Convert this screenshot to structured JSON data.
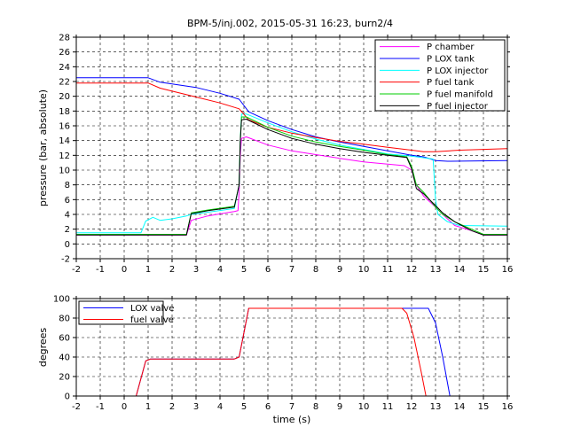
{
  "chart_data": [
    {
      "type": "line",
      "title": "BPM-5/inj.002, 2015-05-31 16:23, burn2/4",
      "xlabel": "",
      "ylabel": "pressure (bar, absolute)",
      "xlim": [
        -2,
        16
      ],
      "ylim": [
        -2,
        28
      ],
      "xticks": [
        -2,
        -1,
        0,
        1,
        2,
        3,
        4,
        5,
        6,
        7,
        8,
        9,
        10,
        11,
        12,
        13,
        14,
        15,
        16
      ],
      "yticks": [
        -2,
        0,
        2,
        4,
        6,
        8,
        10,
        12,
        14,
        16,
        18,
        20,
        22,
        24,
        26,
        28
      ],
      "grid": true,
      "legend_position": "top-right",
      "series": [
        {
          "name": "P chamber",
          "color": "#ff00ff",
          "x": [
            -2,
            2.6,
            2.8,
            3.5,
            4.6,
            4.75,
            4.8,
            4.85,
            4.9,
            5.1,
            6,
            7,
            8,
            9,
            10,
            11,
            11.7,
            12,
            12.2,
            12.5,
            13,
            13.3,
            13.8,
            14.5,
            15,
            16
          ],
          "y": [
            1.2,
            1.2,
            3.2,
            3.8,
            4.4,
            4.5,
            7,
            12,
            14.3,
            14.5,
            13.4,
            12.6,
            12.1,
            11.6,
            11.1,
            10.8,
            10.6,
            10,
            8,
            6.5,
            5,
            4,
            2.5,
            1.8,
            1.2,
            1.2
          ]
        },
        {
          "name": "P LOX tank",
          "color": "#0000ff",
          "x": [
            -2,
            1,
            1.5,
            3,
            4,
            4.8,
            5.2,
            6,
            7,
            8,
            9,
            10,
            11,
            12,
            12.5,
            13,
            13.5,
            16
          ],
          "y": [
            22.5,
            22.5,
            21.9,
            21.2,
            20.4,
            19.6,
            17.9,
            16.7,
            15.5,
            14.5,
            13.8,
            13.2,
            12.6,
            12,
            11.8,
            11.3,
            11.2,
            11.3
          ]
        },
        {
          "name": "P LOX injector",
          "color": "#00ffff",
          "x": [
            -2,
            0.7,
            0.9,
            1.2,
            1.5,
            2,
            2.6,
            2.8,
            3.5,
            4.6,
            4.8,
            4.85,
            4.9,
            5.1,
            6,
            7,
            8,
            9,
            10,
            11,
            12,
            12.9,
            13,
            13.1,
            13.5,
            14,
            16
          ],
          "y": [
            1.5,
            1.5,
            3.1,
            3.6,
            3.2,
            3.4,
            3.8,
            4,
            4.3,
            4.8,
            8,
            14,
            17.6,
            17.6,
            16.4,
            15.2,
            14.2,
            13.4,
            12.8,
            12.2,
            11.9,
            11.5,
            6,
            4,
            3,
            2.5,
            2.4
          ]
        },
        {
          "name": "P fuel tank",
          "color": "#ff0000",
          "x": [
            -2,
            1,
            1.5,
            3,
            4,
            4.8,
            5.2,
            6,
            7,
            8,
            9,
            10,
            11,
            12,
            12.5,
            13,
            14,
            16
          ],
          "y": [
            21.8,
            21.8,
            21.1,
            19.9,
            19.1,
            18.3,
            16.8,
            15.8,
            15,
            14.4,
            13.9,
            13.5,
            13.1,
            12.7,
            12.5,
            12.5,
            12.7,
            12.9
          ]
        },
        {
          "name": "P fuel manifold",
          "color": "#00cc00",
          "x": [
            -2,
            2.6,
            2.8,
            3.5,
            4.6,
            4.8,
            4.85,
            4.9,
            5.1,
            6,
            7,
            8,
            9,
            10,
            11,
            11.8,
            12,
            12.2,
            12.5,
            13,
            13.3,
            13.8,
            14.5,
            15,
            16
          ],
          "y": [
            1.3,
            1.3,
            4.2,
            4.6,
            5.1,
            8,
            14,
            17.2,
            17.2,
            15.8,
            14.6,
            13.8,
            13.2,
            12.7,
            12.1,
            11.8,
            10.5,
            8,
            7,
            5,
            4,
            3,
            2,
            1.3,
            1.3
          ]
        },
        {
          "name": "P fuel injector",
          "color": "#000000",
          "x": [
            -2,
            2.6,
            2.8,
            3.5,
            4.6,
            4.8,
            4.85,
            4.9,
            5.1,
            6,
            7,
            8,
            9,
            10,
            11,
            11.8,
            12,
            12.2,
            12.5,
            13,
            13.3,
            13.8,
            14.5,
            15,
            16
          ],
          "y": [
            1.2,
            1.2,
            4.1,
            4.5,
            5,
            8,
            14,
            16.8,
            16.9,
            15.5,
            14.3,
            13.5,
            12.9,
            12.4,
            12,
            11.7,
            10.2,
            7.5,
            6.8,
            5.2,
            4.2,
            3,
            1.8,
            1.2,
            1.2
          ]
        }
      ]
    },
    {
      "type": "line",
      "title": "",
      "xlabel": "time (s)",
      "ylabel": "degrees",
      "xlim": [
        -2,
        16
      ],
      "ylim": [
        0,
        100
      ],
      "xticks": [
        -2,
        -1,
        0,
        1,
        2,
        3,
        4,
        5,
        6,
        7,
        8,
        9,
        10,
        11,
        12,
        13,
        14,
        15,
        16
      ],
      "yticks": [
        0,
        20,
        40,
        60,
        80,
        100
      ],
      "grid": true,
      "legend_position": "top-left",
      "series": [
        {
          "name": "LOX valve",
          "color": "#0000ff",
          "x": [
            0.5,
            0.9,
            1.1,
            4.6,
            4.8,
            5.2,
            12.5,
            12.7,
            13,
            13.3,
            13.6
          ],
          "y": [
            0,
            36,
            38,
            38,
            40,
            90,
            90,
            90,
            75,
            40,
            0
          ]
        },
        {
          "name": "fuel valve",
          "color": "#ff0000",
          "x": [
            0.5,
            0.9,
            1.1,
            4.6,
            4.8,
            5.2,
            11.6,
            11.8,
            12.1,
            12.4,
            12.6
          ],
          "y": [
            0,
            36,
            38,
            38,
            40,
            90,
            90,
            85,
            60,
            25,
            0
          ]
        }
      ]
    }
  ]
}
